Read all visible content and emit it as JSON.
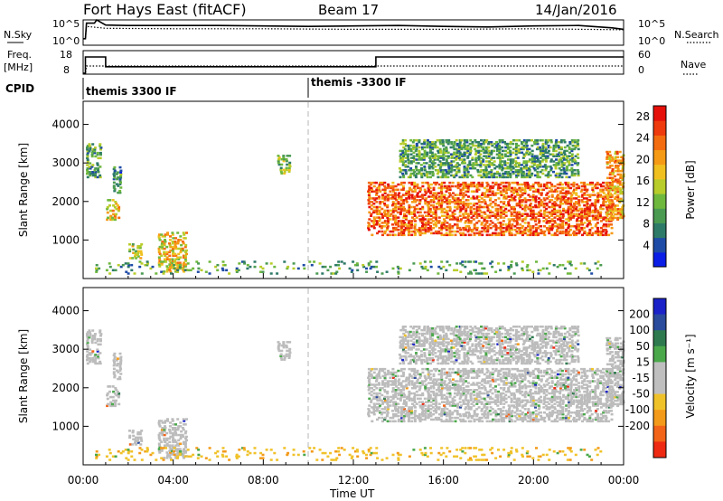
{
  "header": {
    "title": "Fort Hays East (fitACF)",
    "beam": "Beam 17",
    "date": "14/Jan/2016"
  },
  "top_panels": {
    "nsky_label": "N.Sky",
    "nsearch_label": "N.Search",
    "nsky_ticks": [
      "10^5",
      "10^0"
    ],
    "nsearch_ticks": [
      "10^5",
      "10^0"
    ],
    "freq_label": "Freq.",
    "freq_unit": "[MHz]",
    "freq_ticks": [
      "18",
      "8"
    ],
    "nave_ticks": [
      "60",
      "0"
    ],
    "nave_label": "Nave",
    "cpid_label": "CPID",
    "cpid_segments": [
      {
        "start_h": 0.0,
        "label": "themis 3300 IF"
      },
      {
        "start_h": 10.0,
        "label": "themis -3300 IF"
      }
    ]
  },
  "colors": {
    "power_scale": [
      "#0a1ee6",
      "#1e4ba6",
      "#2e7a68",
      "#4a9a52",
      "#6fb83e",
      "#b8cc2a",
      "#f0c020",
      "#f59a16",
      "#f46c10",
      "#ee3a0c",
      "#e6100a"
    ],
    "velocity_scale": [
      "#1a22c8",
      "#2a4a9c",
      "#2e7a4e",
      "#4aa84a",
      "#bfbfbf",
      "#bfbfbf",
      "#f0c22a",
      "#f39a1a",
      "#f26418",
      "#ee2a12"
    ],
    "ground_scatter": "#bcbcbc",
    "grid_dash": "#b4b4b4"
  },
  "chart_data": [
    {
      "type": "line",
      "title": "",
      "series": [
        {
          "name": "N.Sky",
          "style": "solid",
          "x": [
            0,
            0.1,
            0.15,
            0.5,
            0.6,
            1.0,
            2,
            4,
            6,
            8,
            10,
            12,
            14,
            16,
            18,
            20,
            22,
            23.5,
            24
          ],
          "y": [
            1.2,
            1.2,
            4.5,
            4.5,
            5.2,
            4.1,
            4.0,
            4.0,
            4.0,
            3.9,
            3.8,
            3.9,
            4.0,
            3.8,
            3.7,
            3.9,
            4.0,
            3.5,
            3.2
          ]
        },
        {
          "name": "N.Search",
          "style": "dotted",
          "x": [
            0,
            0.1,
            0.15,
            1,
            4,
            8,
            12,
            16,
            20,
            24
          ],
          "y": [
            1.2,
            1.2,
            3.8,
            3.4,
            3.3,
            3.3,
            3.2,
            3.2,
            3.3,
            3.1
          ]
        }
      ],
      "ylim": [
        0,
        5
      ],
      "xlim": [
        0,
        24
      ]
    },
    {
      "type": "line",
      "series": [
        {
          "name": "Freq.",
          "style": "solid",
          "x": [
            0,
            0.1,
            0.1,
            1.0,
            1.0,
            13.0,
            13.0,
            24.0
          ],
          "y": [
            8,
            8,
            15.5,
            15.5,
            11.0,
            11.0,
            15.5,
            15.5
          ]
        },
        {
          "name": "Nave",
          "style": "dotted",
          "x": [
            0,
            0.1,
            0.15,
            24
          ],
          "y": [
            0,
            0,
            20,
            20
          ]
        }
      ],
      "ylim_freq": [
        8,
        18
      ],
      "ylim_nave": [
        0,
        60
      ]
    },
    {
      "type": "heatmap",
      "name": "Power",
      "xlabel": "",
      "ylabel": "Slant Range [km]",
      "xlim": [
        0,
        24
      ],
      "ylim": [
        0,
        4600
      ],
      "yticks": [
        1000,
        2000,
        3000,
        4000
      ],
      "colorbar_label": "Power [dB]",
      "colorbar_ticks": [
        4,
        8,
        12,
        16,
        20,
        24,
        28
      ],
      "colorbar_range": [
        0,
        30
      ],
      "echo_regions": [
        {
          "t0": 0.1,
          "t1": 0.8,
          "r0": 2600,
          "r1": 3500,
          "p": 10
        },
        {
          "t0": 1.0,
          "t1": 1.6,
          "r0": 1500,
          "r1": 2050,
          "p": 18
        },
        {
          "t0": 1.3,
          "t1": 1.7,
          "r0": 2200,
          "r1": 2900,
          "p": 8
        },
        {
          "t0": 2.0,
          "t1": 2.6,
          "r0": 500,
          "r1": 900,
          "p": 14
        },
        {
          "t0": 3.3,
          "t1": 4.6,
          "r0": 150,
          "r1": 1200,
          "p": 18
        },
        {
          "t0": 8.6,
          "t1": 9.2,
          "r0": 2700,
          "r1": 3200,
          "p": 12
        },
        {
          "t0": 12.6,
          "t1": 23.5,
          "r0": 1100,
          "r1": 2500,
          "p": 24
        },
        {
          "t0": 14.0,
          "t1": 22.0,
          "r0": 2600,
          "r1": 3600,
          "p": 10
        },
        {
          "t0": 23.2,
          "t1": 24.0,
          "r0": 1500,
          "r1": 3300,
          "p": 20
        },
        {
          "t0": 0.5,
          "t1": 23.0,
          "r0": 100,
          "r1": 450,
          "p": 10
        }
      ]
    },
    {
      "type": "heatmap",
      "name": "Velocity",
      "xlabel": "Time UT",
      "ylabel": "Slant Range [km]",
      "xlim": [
        0,
        24
      ],
      "ylim": [
        0,
        4600
      ],
      "yticks": [
        1000,
        2000,
        3000,
        4000
      ],
      "xticks": [
        "00:00",
        "04:00",
        "08:00",
        "12:00",
        "16:00",
        "20:00",
        "00:00"
      ],
      "colorbar_label": "Velocity [m s⁻¹]",
      "colorbar_ticks": [
        200,
        100,
        50,
        15,
        -15,
        -50,
        -100,
        -200
      ]
    }
  ]
}
